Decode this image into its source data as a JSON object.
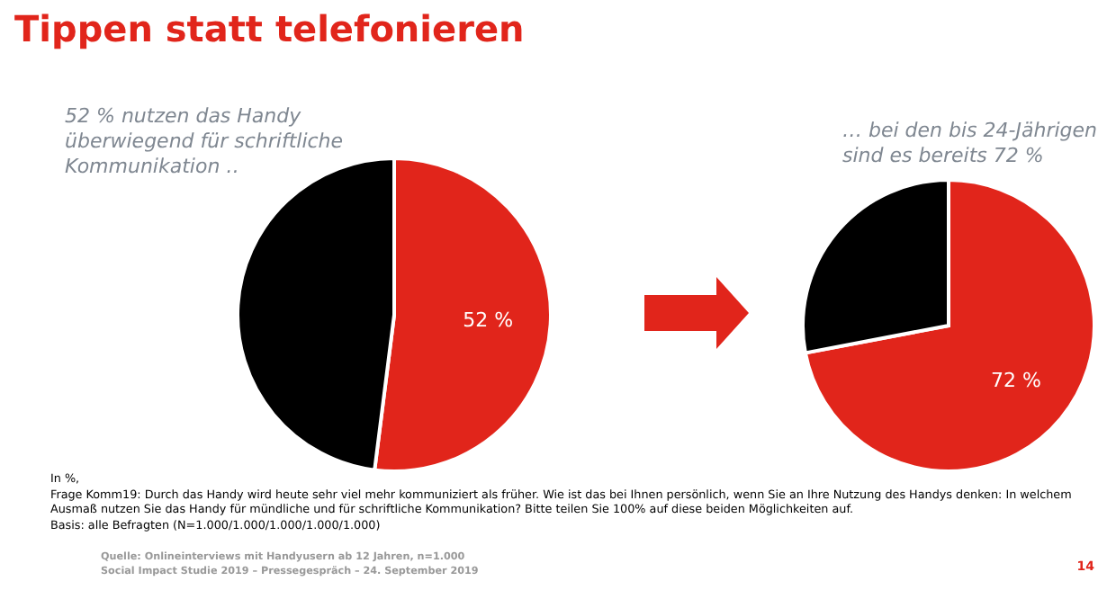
{
  "chart_data": [
    {
      "type": "pie",
      "title": "Tippen statt telefonieren",
      "subtitle": "52 % nutzen das Handy überwiegend für schriftliche Kommunikation …",
      "categories": [
        null,
        null
      ],
      "values": [
        52,
        48
      ],
      "colors": [
        "#e1251b",
        "#000000"
      ],
      "value_labels": [
        "52 %",
        null
      ],
      "annotations": [
        "In %,",
        "Frage Komm19: Durch das Handy wird heute sehr viel mehr kommuniziert als früher. Wie ist das bei Ihnen persönlich, wenn Sie an Ihre Nutzung des Handys denken: In welchem Ausmaß nutzen Sie das Handy für mündliche und für schriftliche Kommunikation? Bitte teilen Sie 100% auf diese beiden Möglichkeiten auf.",
        "Basis: alle Befragten (N=1.000/1.000/1.000/1.000/1.000)",
        "Quelle: Onlineinterviews mit Handyusern ab 12 Jahren, n=1.000",
        "Social Impact Studie 2019 – Pressegespräch – 24. September 2019",
        "14"
      ]
    },
    {
      "type": "pie",
      "subtitle": "… bei den bis 24-Jährigen sind es bereits 72 %",
      "categories": [
        null,
        null
      ],
      "values": [
        72,
        28
      ],
      "colors": [
        "#e1251b",
        "#000000"
      ],
      "value_labels": [
        "72 %",
        null
      ]
    }
  ]
}
